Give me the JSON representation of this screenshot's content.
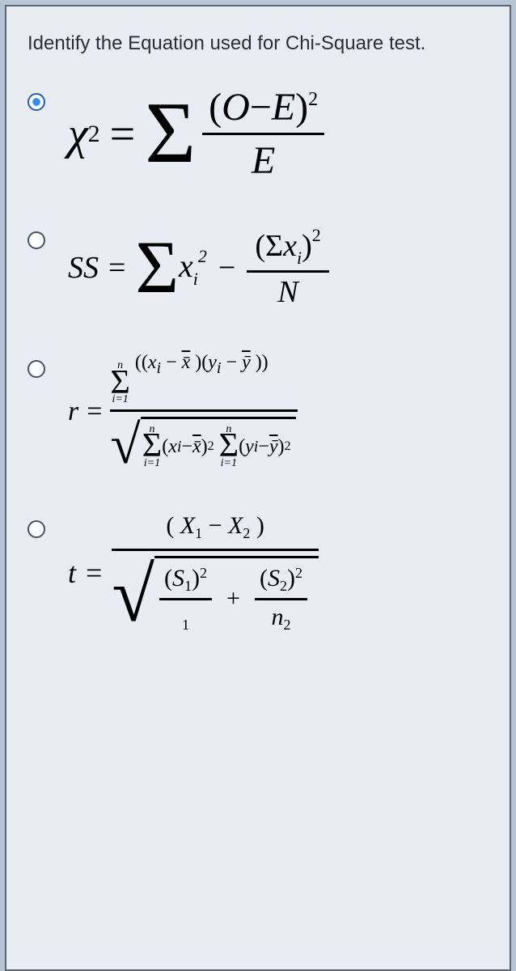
{
  "question": {
    "text": "Identify the Equation used for Chi-Square test."
  },
  "selected_index": 0,
  "colors": {
    "page_bg": "#b8c4d4",
    "panel_bg": "#e9edf3",
    "border": "#5a6675",
    "text": "#2a2f37",
    "eq_text": "#000000",
    "selected_radio": "#2d8cff"
  },
  "options": [
    {
      "id": "chi-square",
      "type": "equation",
      "lhs": "χ",
      "lhs_sup": "2",
      "sigma": "Σ",
      "numerator_open": "(",
      "numerator_O": "O",
      "numerator_minus": "−",
      "numerator_E": "E",
      "numerator_close": ")",
      "numerator_sup": "2",
      "denominator": "E",
      "equals": "="
    },
    {
      "id": "sum-of-squares",
      "type": "equation",
      "lhs": "SS",
      "equals": "=",
      "sigma": "Σ",
      "xi_x": "x",
      "xi_sub": "i",
      "xi_sup": "2",
      "minus": "−",
      "frac_num_open": "(Σ",
      "frac_num_x": "x",
      "frac_num_sub": "i",
      "frac_num_close": ")",
      "frac_num_sup": "2",
      "frac_den": "N"
    },
    {
      "id": "pearson-r",
      "type": "equation",
      "lhs": "r",
      "equals": "=",
      "lim_top": "n",
      "lim_bot": "i=1",
      "sigma": "Σ",
      "num_expr_a_open": "((",
      "x": "x",
      "xi_sub": "i",
      "minus": "−",
      "xbar": "x̄",
      "num_expr_mid": ")(",
      "y": "y",
      "yi_sub": "i",
      "ybar": "ȳ",
      "num_expr_close": "))",
      "den_a_open": "(",
      "den_a_close": ")",
      "sq": "2"
    },
    {
      "id": "t-test",
      "type": "equation",
      "lhs": "t",
      "equals": "=",
      "num_open": "( ",
      "X": "X",
      "sub1": "1",
      "minus": "−",
      "sub2": "2",
      "num_close": " )",
      "S": "S",
      "n": "n",
      "plus": "+",
      "sq": "2"
    }
  ]
}
